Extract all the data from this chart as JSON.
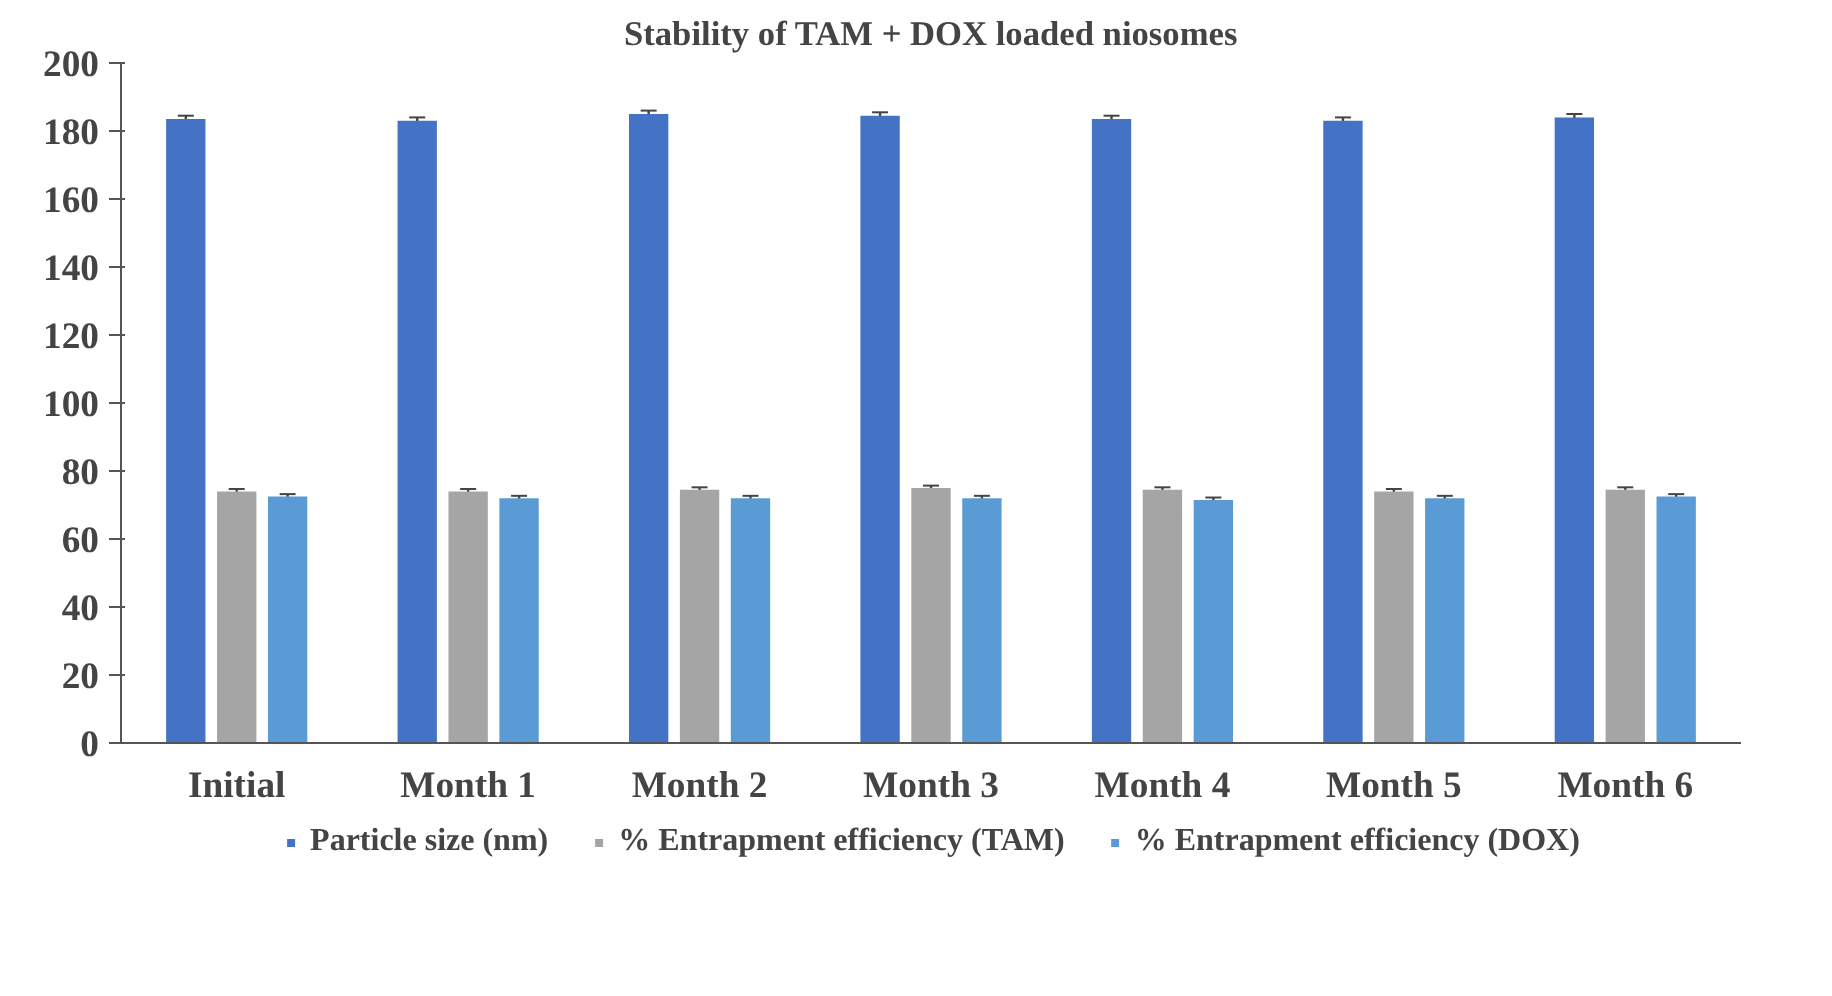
{
  "chart_data": {
    "type": "bar",
    "title": "Stability of TAM + DOX loaded niosomes",
    "categories": [
      "Initial",
      "Month 1",
      "Month 2",
      "Month 3",
      "Month 4",
      "Month 5",
      "Month 6"
    ],
    "series": [
      {
        "name": "Particle size (nm)",
        "color": "#4472c4",
        "values": [
          183.5,
          183,
          185,
          184.5,
          183.5,
          183,
          184
        ],
        "errors": [
          1,
          1,
          1,
          1,
          1,
          1,
          1
        ]
      },
      {
        "name": "% Entrapment efficiency (TAM)",
        "color": "#a5a5a5",
        "values": [
          74,
          74,
          74.5,
          75,
          74.5,
          74,
          74.5
        ],
        "errors": [
          0.7,
          0.7,
          0.7,
          0.7,
          0.7,
          0.7,
          0.7
        ]
      },
      {
        "name": "% Entrapment efficiency (DOX)",
        "color": "#5b9bd5",
        "values": [
          72.5,
          72,
          72,
          72,
          71.5,
          72,
          72.5
        ],
        "errors": [
          0.7,
          0.7,
          0.7,
          0.7,
          0.7,
          0.7,
          0.7
        ]
      }
    ],
    "ylim": [
      0,
      200
    ],
    "yticks": [
      0,
      20,
      40,
      60,
      80,
      100,
      120,
      140,
      160,
      180,
      200
    ],
    "grid": false,
    "legend": "bottom"
  }
}
